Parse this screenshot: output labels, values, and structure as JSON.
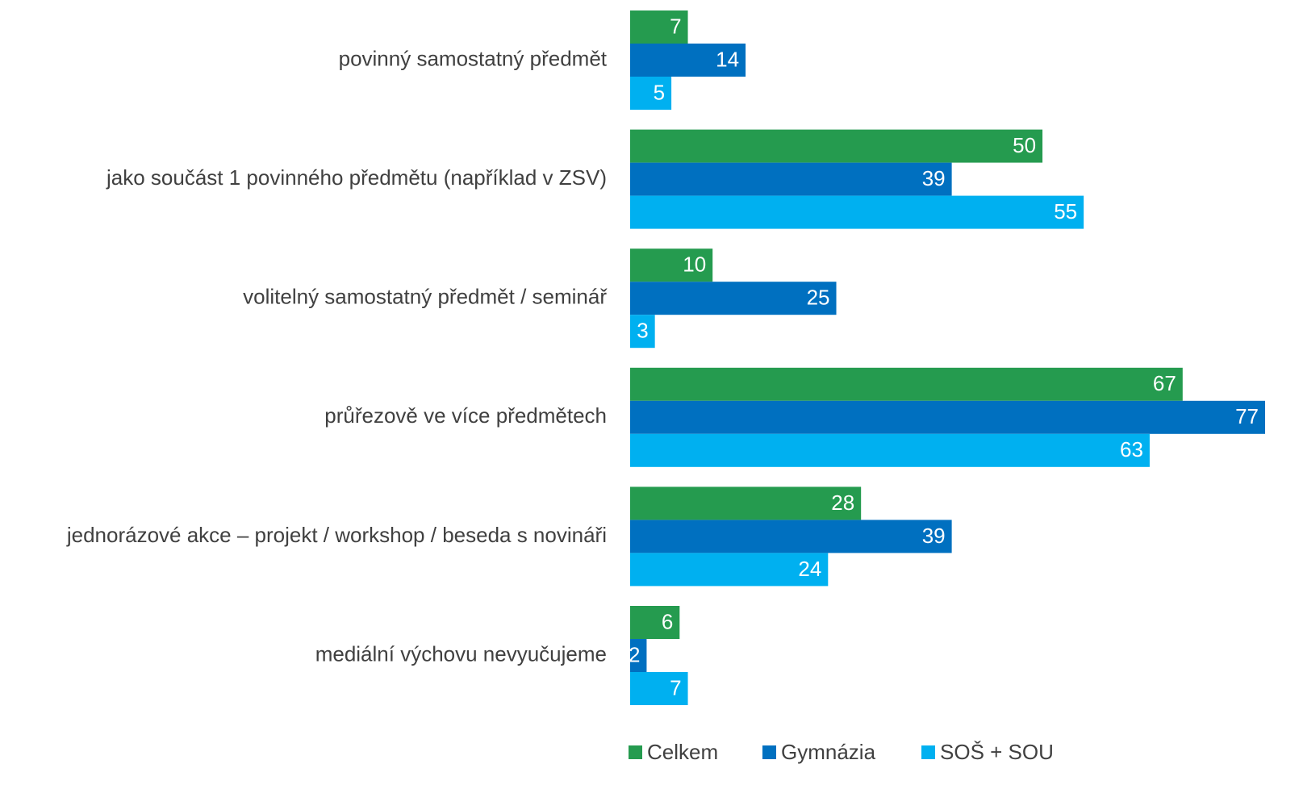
{
  "chart_data": {
    "type": "bar",
    "orientation": "horizontal",
    "categories": [
      "povinný samostatný předmět",
      "jako součást 1 povinného předmětu (například v ZSV)",
      "volitelný samostatný předmět / seminář",
      "průřezově ve více předmětech",
      "jednorázové akce – projekt / workshop / beseda s novináři",
      "mediální výchovu nevyučujeme"
    ],
    "series": [
      {
        "name": "Celkem",
        "color": "#259b4f",
        "values": [
          7,
          50,
          10,
          67,
          28,
          6
        ]
      },
      {
        "name": "Gymnázia",
        "color": "#0070c0",
        "values": [
          14,
          39,
          25,
          77,
          39,
          2
        ]
      },
      {
        "name": "SOŠ + SOU",
        "color": "#00b0f0",
        "values": [
          5,
          55,
          3,
          63,
          24,
          7
        ]
      }
    ],
    "legend": "bottom"
  }
}
